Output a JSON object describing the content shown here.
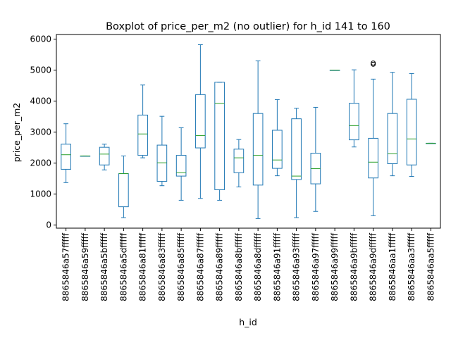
{
  "chart_data": {
    "type": "boxplot",
    "title": "Boxplot of price_per_m2 (no outlier) for h_id 141 to 160",
    "xlabel": "h_id",
    "ylabel": "price_per_m2",
    "ylim": [
      -100,
      6150
    ],
    "yticks": [
      0,
      1000,
      2000,
      3000,
      4000,
      5000,
      6000
    ],
    "grid": false,
    "colors": {
      "box": "#1f77b4",
      "median": "#2ca02c",
      "flier": "#000000",
      "axis": "#000000"
    },
    "categories": [
      "8865846a57fffff",
      "8865846a59fffff",
      "8865846a5bfffff",
      "8865846a5dfffff",
      "8865846a81fffff",
      "8865846a83fffff",
      "8865846a85fffff",
      "8865846a87fffff",
      "8865846a89fffff",
      "8865846a8bfffff",
      "8865846a8dfffff",
      "8865846a91fffff",
      "8865846a93fffff",
      "8865846a97fffff",
      "8865846a99fffff",
      "8865846a9bfffff",
      "8865846a9dfffff",
      "8865846aa1fffff",
      "8865846aa3fffff",
      "8865846aa5fffff"
    ],
    "boxes": [
      {
        "whislo": 1370,
        "q1": 1800,
        "med": 2270,
        "q3": 2610,
        "whishi": 3270,
        "fliers": []
      },
      {
        "whislo": 2230,
        "q1": 2230,
        "med": 2230,
        "q3": 2230,
        "whishi": 2230,
        "fliers": []
      },
      {
        "whislo": 1780,
        "q1": 1940,
        "med": 2290,
        "q3": 2510,
        "whishi": 2610,
        "fliers": []
      },
      {
        "whislo": 240,
        "q1": 590,
        "med": 1660,
        "q3": 1660,
        "whishi": 2230,
        "fliers": []
      },
      {
        "whislo": 2170,
        "q1": 2250,
        "med": 2940,
        "q3": 3550,
        "whishi": 4520,
        "fliers": []
      },
      {
        "whislo": 1270,
        "q1": 1410,
        "med": 2010,
        "q3": 2580,
        "whishi": 3510,
        "fliers": []
      },
      {
        "whislo": 800,
        "q1": 1580,
        "med": 1690,
        "q3": 2250,
        "whishi": 3140,
        "fliers": []
      },
      {
        "whislo": 860,
        "q1": 2490,
        "med": 2890,
        "q3": 4210,
        "whishi": 5820,
        "fliers": []
      },
      {
        "whislo": 800,
        "q1": 1140,
        "med": 3930,
        "q3": 4610,
        "whishi": 4610,
        "fliers": []
      },
      {
        "whislo": 1230,
        "q1": 1690,
        "med": 2170,
        "q3": 2450,
        "whishi": 2760,
        "fliers": []
      },
      {
        "whislo": 210,
        "q1": 1290,
        "med": 2250,
        "q3": 3600,
        "whishi": 5300,
        "fliers": []
      },
      {
        "whislo": 1590,
        "q1": 1830,
        "med": 2100,
        "q3": 3060,
        "whishi": 4050,
        "fliers": []
      },
      {
        "whislo": 240,
        "q1": 1470,
        "med": 1580,
        "q3": 3430,
        "whishi": 3770,
        "fliers": []
      },
      {
        "whislo": 440,
        "q1": 1330,
        "med": 1820,
        "q3": 2320,
        "whishi": 3800,
        "fliers": []
      },
      {
        "whislo": 5000,
        "q1": 5000,
        "med": 5000,
        "q3": 5000,
        "whishi": 5000,
        "fliers": []
      },
      {
        "whislo": 2520,
        "q1": 2750,
        "med": 3210,
        "q3": 3930,
        "whishi": 5010,
        "fliers": []
      },
      {
        "whislo": 300,
        "q1": 1520,
        "med": 2030,
        "q3": 2800,
        "whishi": 4710,
        "fliers": [
          5190,
          5230
        ]
      },
      {
        "whislo": 1590,
        "q1": 1980,
        "med": 2300,
        "q3": 3600,
        "whishi": 4930,
        "fliers": []
      },
      {
        "whislo": 1570,
        "q1": 1940,
        "med": 2780,
        "q3": 4060,
        "whishi": 4890,
        "fliers": []
      },
      {
        "whislo": 2640,
        "q1": 2640,
        "med": 2640,
        "q3": 2640,
        "whishi": 2640,
        "fliers": []
      }
    ]
  }
}
